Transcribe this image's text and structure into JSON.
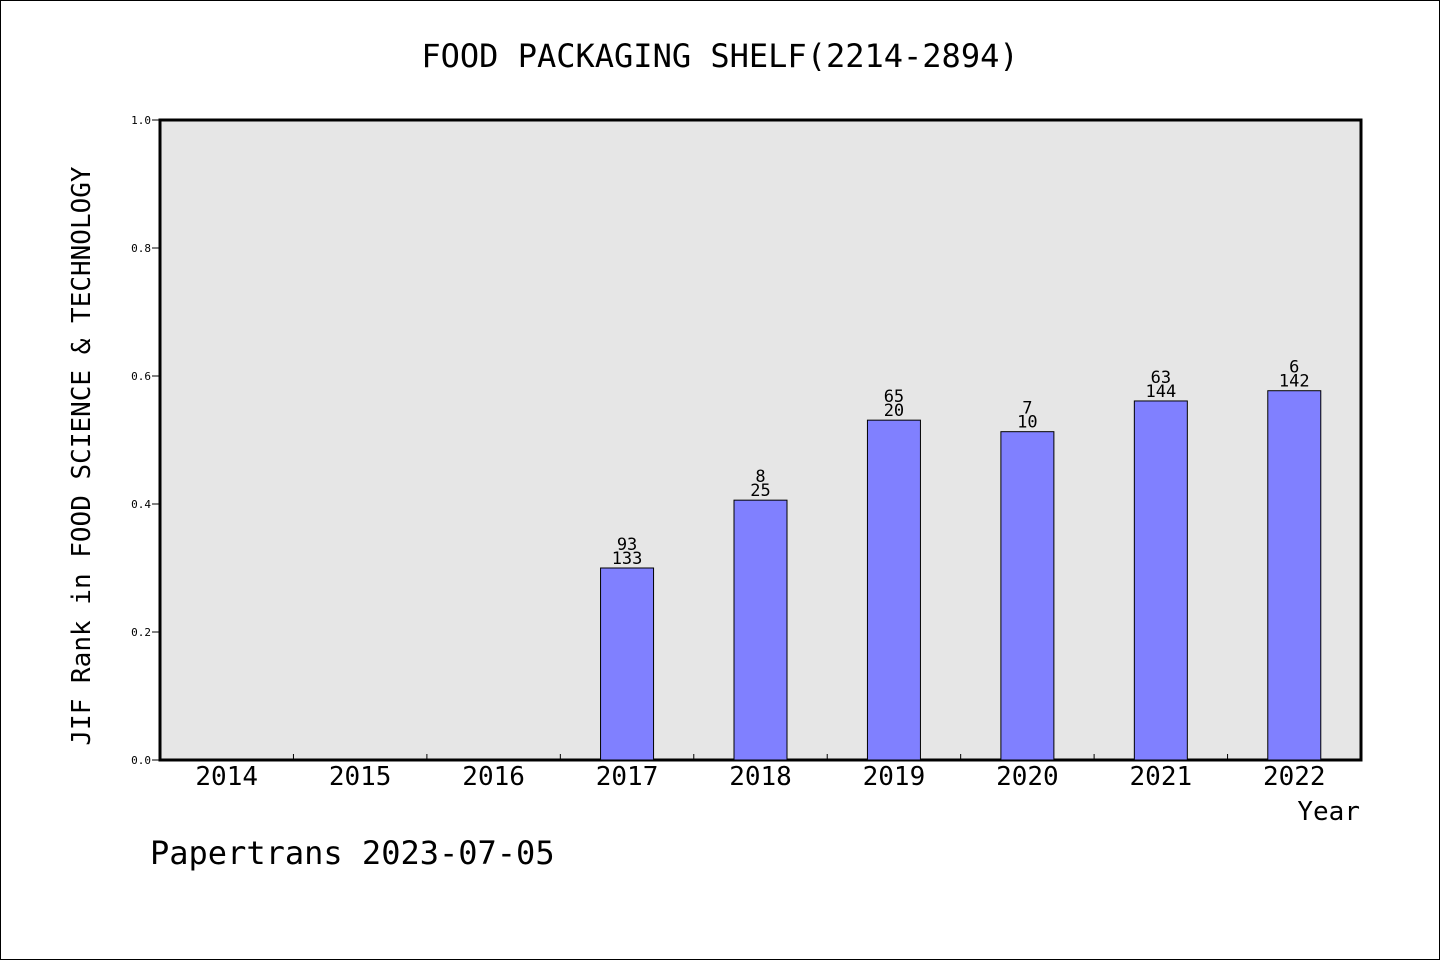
{
  "chart_data": {
    "type": "bar",
    "title": "FOOD PACKAGING SHELF(2214-2894)",
    "xlabel": "Year",
    "ylabel": "JIF Rank in FOOD SCIENCE & TECHNOLOGY",
    "ylim": [
      0,
      1.0
    ],
    "yticks": [
      "0.0",
      "0.2",
      "0.4",
      "0.6",
      "0.8",
      "1.0"
    ],
    "categories": [
      "2014",
      "2015",
      "2016",
      "2017",
      "2018",
      "2019",
      "2020",
      "2021",
      "2022"
    ],
    "values": [
      null,
      null,
      null,
      0.3,
      0.406,
      0.531,
      0.513,
      0.561,
      0.577
    ],
    "labels_top": [
      "",
      "",
      "",
      "93",
      "8",
      "65",
      "7",
      "63",
      "6"
    ],
    "labels_bottom": [
      "",
      "",
      "",
      "133",
      "25",
      "20",
      "10",
      "144",
      "142"
    ],
    "grid": false,
    "bar_color": "#8080ff",
    "plot_background": "#e6e6e6"
  },
  "footer": "Papertrans 2023-07-05"
}
